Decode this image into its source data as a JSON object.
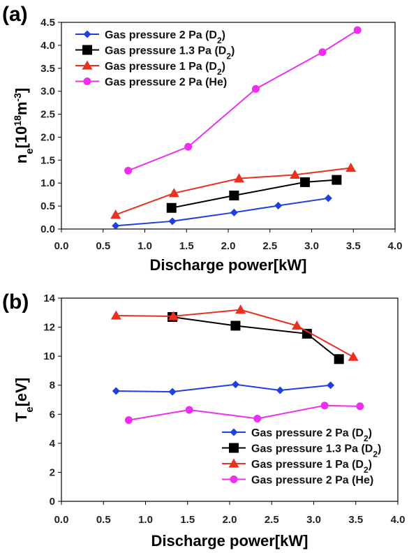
{
  "chart_data": [
    {
      "panel_label": "(a)",
      "type": "line",
      "xlabel": "Discharge power[kW]",
      "ylabel_main": "n",
      "ylabel_sub": "e",
      "ylabel_rest": "[10",
      "ylabel_exp1": "18",
      "ylabel_unit": "m",
      "ylabel_exp2": "-3",
      "ylabel_close": "]",
      "xlim": [
        0.0,
        4.0
      ],
      "ylim": [
        0.0,
        4.5
      ],
      "xticks": [
        "0.0",
        "0.5",
        "1.0",
        "1.5",
        "2.0",
        "2.5",
        "3.0",
        "3.5",
        "4.0"
      ],
      "yticks": [
        "0.0",
        "0.5",
        "1.0",
        "1.5",
        "2.0",
        "2.5",
        "3.0",
        "3.5",
        "4.0",
        "4.5"
      ],
      "legend_position": "top-left",
      "series": [
        {
          "name_pre": "Gas pressure 2 Pa",
          "name_species": "D",
          "name_sub": "2",
          "color": "#1f3fe0",
          "marker": "diamond",
          "x": [
            0.65,
            1.33,
            2.07,
            2.6,
            3.2
          ],
          "y": [
            0.07,
            0.17,
            0.36,
            0.51,
            0.67
          ]
        },
        {
          "name_pre": "Gas pressure 1.3 Pa",
          "name_species": "D",
          "name_sub": "2",
          "color": "#000000",
          "marker": "square",
          "x": [
            1.32,
            2.07,
            2.92,
            3.3
          ],
          "y": [
            0.46,
            0.73,
            1.02,
            1.07
          ]
        },
        {
          "name_pre": "Gas pressure 1 Pa",
          "name_species": "D",
          "name_sub": "2",
          "color": "#e8311e",
          "marker": "triangle",
          "x": [
            0.65,
            1.35,
            2.13,
            2.8,
            3.47
          ],
          "y": [
            0.31,
            0.78,
            1.1,
            1.18,
            1.33
          ]
        },
        {
          "name_pre": "Gas pressure 2 Pa",
          "name_species": "He",
          "name_sub": "",
          "color": "#ee2ef0",
          "marker": "circle",
          "x": [
            0.8,
            1.52,
            2.33,
            3.13,
            3.55
          ],
          "y": [
            1.27,
            1.79,
            3.05,
            3.85,
            4.33
          ]
        }
      ]
    },
    {
      "panel_label": "(b)",
      "type": "line",
      "xlabel": "Discharge power[kW]",
      "ylabel_main": "T",
      "ylabel_sub": "e",
      "ylabel_rest": "[eV]",
      "xlim": [
        0.0,
        4.0
      ],
      "ylim": [
        0,
        14
      ],
      "xticks": [
        "0.0",
        "0.5",
        "1.0",
        "1.5",
        "2.0",
        "2.5",
        "3.0",
        "3.5",
        "4.0"
      ],
      "yticks": [
        "0",
        "2",
        "4",
        "6",
        "8",
        "10",
        "12",
        "14"
      ],
      "legend_position": "bottom-right",
      "series": [
        {
          "name_pre": "Gas pressure 2 Pa",
          "name_species": "D",
          "name_sub": "2",
          "color": "#1f3fe0",
          "marker": "diamond",
          "x": [
            0.65,
            1.32,
            2.07,
            2.6,
            3.2
          ],
          "y": [
            7.6,
            7.55,
            8.05,
            7.65,
            8.0
          ]
        },
        {
          "name_pre": "Gas pressure 1.3 Pa",
          "name_species": "D",
          "name_sub": "2",
          "color": "#000000",
          "marker": "square",
          "x": [
            1.32,
            2.07,
            2.92,
            3.3
          ],
          "y": [
            12.7,
            12.1,
            11.55,
            9.8
          ]
        },
        {
          "name_pre": "Gas pressure 1 Pa",
          "name_species": "D",
          "name_sub": "2",
          "color": "#e8311e",
          "marker": "triangle",
          "x": [
            0.65,
            1.33,
            2.13,
            2.8,
            3.47
          ],
          "y": [
            12.8,
            12.75,
            13.2,
            12.1,
            9.95
          ]
        },
        {
          "name_pre": "Gas pressure 2 Pa",
          "name_species": "He",
          "name_sub": "",
          "color": "#ee2ef0",
          "marker": "circle",
          "x": [
            0.8,
            1.52,
            2.33,
            3.13,
            3.55
          ],
          "y": [
            5.6,
            6.3,
            5.7,
            6.6,
            6.55
          ]
        }
      ]
    }
  ]
}
